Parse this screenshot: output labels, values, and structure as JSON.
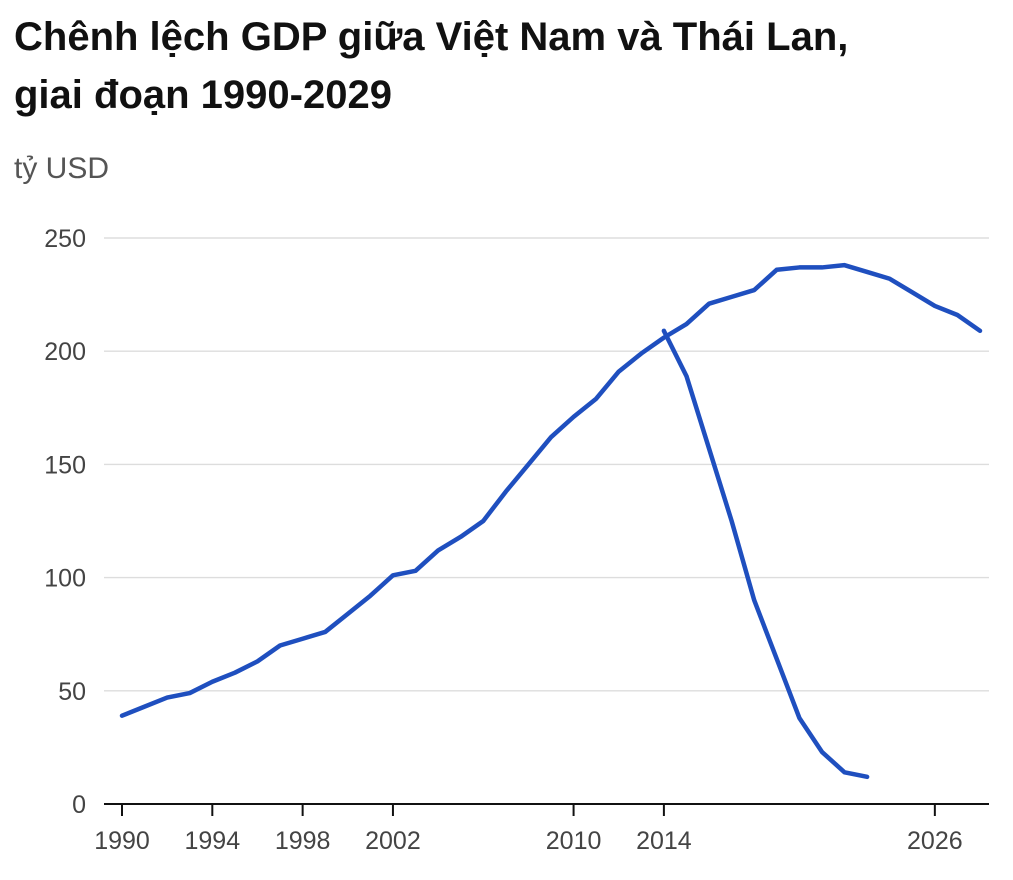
{
  "chart_data": {
    "type": "line",
    "title": "Chênh lệch GDP giữa Việt Nam và Thái Lan,",
    "subtitle": "giai đoạn 1990-2029",
    "ylabel": "tỷ USD",
    "xlabel": "",
    "xlim": [
      1990,
      2028
    ],
    "ylim": [
      0,
      250
    ],
    "grid": true,
    "legend": "none",
    "x_ticks": [
      1990,
      1994,
      1998,
      2002,
      2010,
      2014,
      2026
    ],
    "x_tick_labels": [
      "1990",
      "1994",
      "1998",
      "2002",
      "2010",
      "2014",
      "2026"
    ],
    "y_ticks": [
      0,
      50,
      100,
      150,
      200,
      250
    ],
    "y_tick_labels": [
      "0",
      "50",
      "100",
      "150",
      "200",
      "250"
    ],
    "series": [
      {
        "color": "#1f4fbf",
        "points": [
          [
            1990,
            39
          ],
          [
            1991,
            43
          ],
          [
            1992,
            47
          ],
          [
            1993,
            49
          ],
          [
            1994,
            54
          ],
          [
            1995,
            58
          ],
          [
            1996,
            63
          ],
          [
            1997,
            70
          ],
          [
            1998,
            73
          ],
          [
            1999,
            76
          ],
          [
            2000,
            84
          ],
          [
            2001,
            92
          ],
          [
            2002,
            101
          ],
          [
            2003,
            103
          ],
          [
            2004,
            112
          ],
          [
            2005,
            118
          ],
          [
            2006,
            125
          ],
          [
            2007,
            138
          ],
          [
            2008,
            150
          ],
          [
            2009,
            162
          ],
          [
            2010,
            171
          ],
          [
            2011,
            179
          ],
          [
            2012,
            191
          ],
          [
            2013,
            199
          ],
          [
            2014,
            206
          ],
          [
            2015,
            212
          ],
          [
            2016,
            221
          ],
          [
            2017,
            224
          ],
          [
            2018,
            227
          ],
          [
            2019,
            236
          ],
          [
            2020,
            237
          ],
          [
            2021,
            237
          ],
          [
            2022,
            238
          ],
          [
            2023,
            235
          ],
          [
            2024,
            232
          ],
          [
            2025,
            226
          ],
          [
            2026,
            220
          ],
          [
            2027,
            216
          ],
          [
            2028,
            209
          ]
        ]
      },
      {
        "color": "#1f4fbf",
        "points": [
          [
            2014,
            209
          ],
          [
            2015,
            189
          ],
          [
            2016,
            157
          ],
          [
            2017,
            125
          ],
          [
            2018,
            90
          ],
          [
            2019,
            64
          ],
          [
            2020,
            38
          ],
          [
            2021,
            23
          ],
          [
            2022,
            14
          ],
          [
            2023,
            12
          ]
        ]
      }
    ]
  }
}
